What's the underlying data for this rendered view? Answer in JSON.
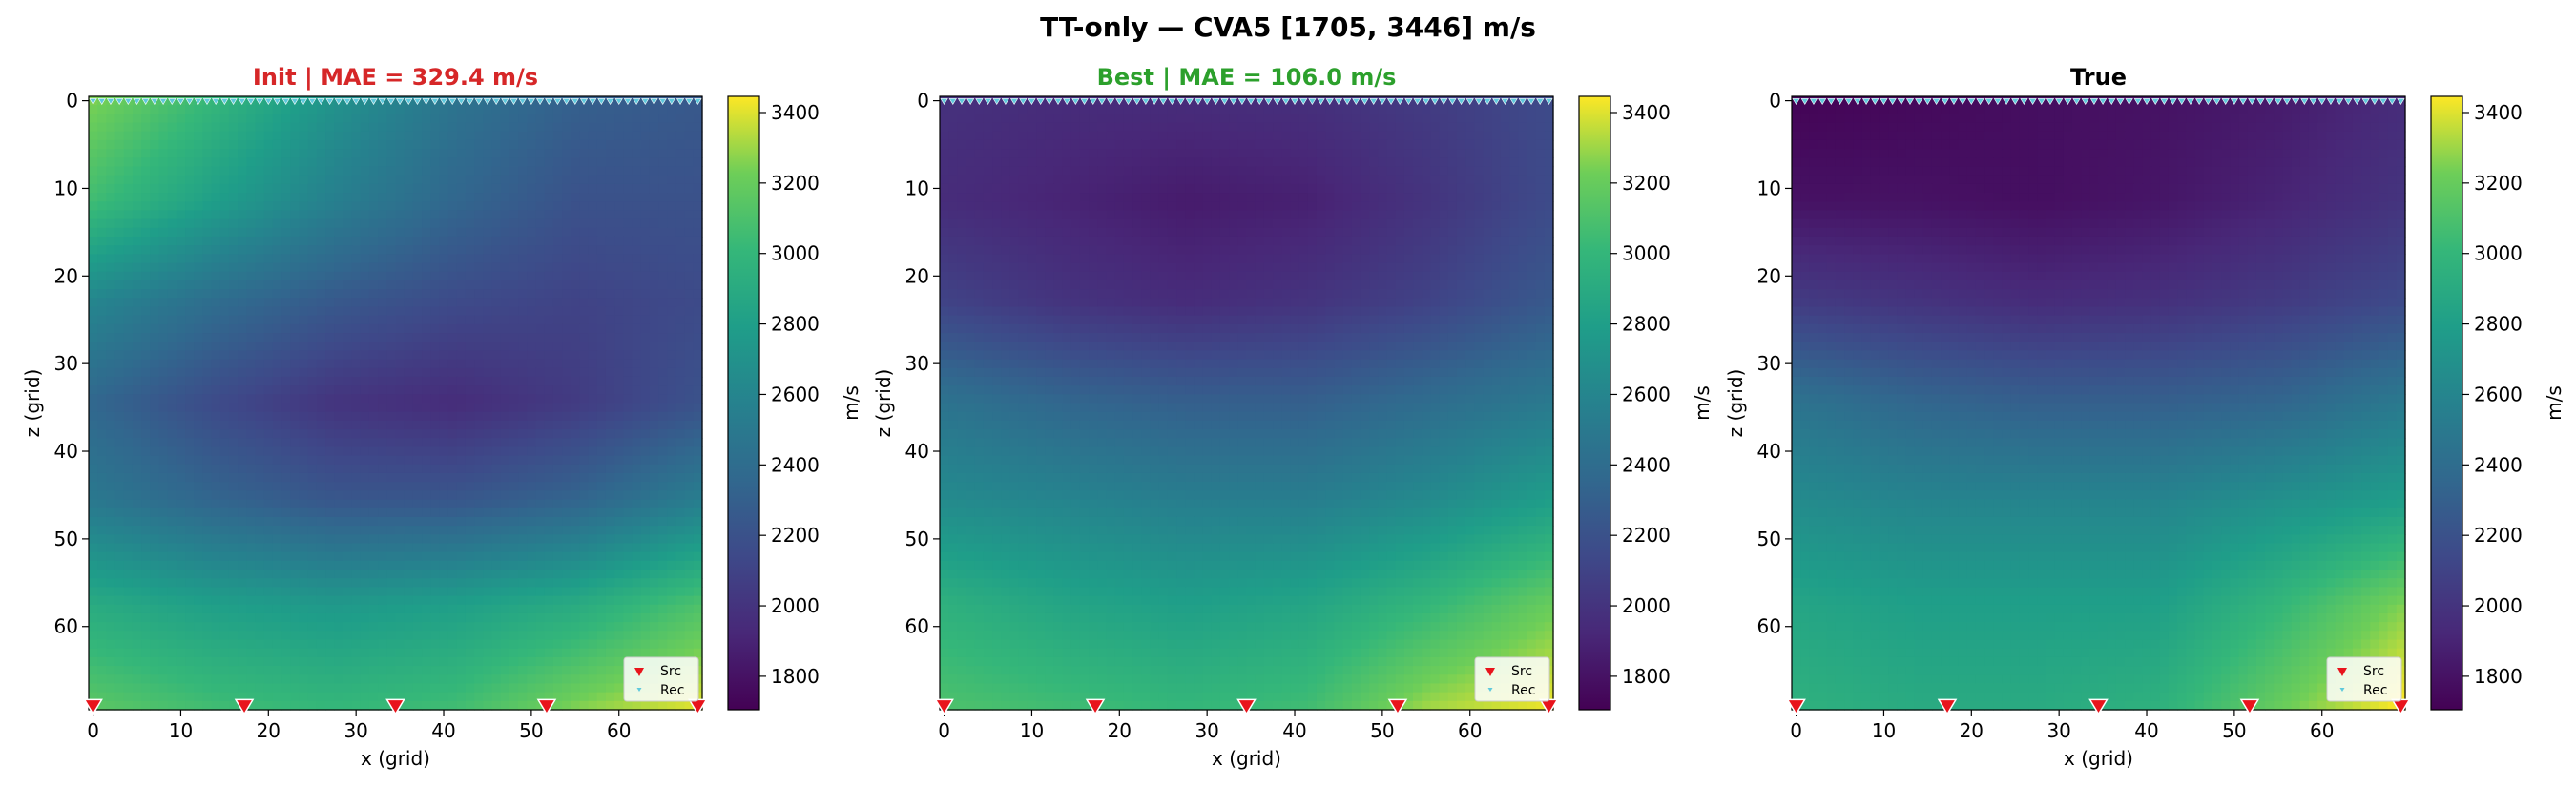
{
  "figure": {
    "suptitle": "TT-only — CVA5 [1705, 3446] m/s"
  },
  "chart_data": {
    "type": "heatmap",
    "value_range": [
      1705,
      3446
    ],
    "colormap": "viridis",
    "colorbar": {
      "label": "m/s",
      "ticks": [
        1800,
        2000,
        2200,
        2400,
        2600,
        2800,
        3000,
        3200,
        3400
      ]
    },
    "grid_size": {
      "nx": 70,
      "nz": 70
    },
    "x_ticks": [
      0,
      10,
      20,
      30,
      40,
      50,
      60
    ],
    "z_ticks": [
      0,
      10,
      20,
      30,
      40,
      50,
      60
    ],
    "xlabel": "x (grid)",
    "ylabel": "z (grid)",
    "legend": {
      "position": "lower-right",
      "entries": [
        "Src",
        "Rec"
      ]
    },
    "source_x": [
      0,
      17.25,
      34.5,
      51.75,
      69
    ],
    "source_z": 69,
    "receiver_count": 70,
    "receiver_z": 0,
    "panels": [
      {
        "title": "Init  |  MAE = 329.4 m/s",
        "title_color": "#d62728",
        "model": "init",
        "control_grid": [
          [
            3250,
            3000,
            2700,
            2450,
            2300,
            2250
          ],
          [
            3050,
            2800,
            2550,
            2350,
            2200,
            2200
          ],
          [
            2600,
            2400,
            2250,
            2150,
            2100,
            2150
          ],
          [
            2350,
            2150,
            2000,
            1950,
            2050,
            2200
          ],
          [
            2500,
            2350,
            2250,
            2250,
            2350,
            2550
          ],
          [
            2900,
            2800,
            2750,
            2800,
            2900,
            3100
          ],
          [
            3150,
            3050,
            3000,
            3050,
            3250,
            3400
          ]
        ]
      },
      {
        "title": "Best  |  MAE = 106.0 m/s",
        "title_color": "#2ca02c",
        "model": "best",
        "control_grid": [
          [
            1980,
            1950,
            1950,
            1970,
            2050,
            2150
          ],
          [
            1950,
            1900,
            1850,
            1880,
            2000,
            2150
          ],
          [
            2100,
            2000,
            1950,
            2000,
            2100,
            2250
          ],
          [
            2450,
            2350,
            2300,
            2300,
            2400,
            2500
          ],
          [
            2650,
            2600,
            2550,
            2550,
            2650,
            2800
          ],
          [
            2950,
            2850,
            2800,
            2850,
            3000,
            3200
          ],
          [
            3100,
            3050,
            3000,
            3050,
            3300,
            3420
          ]
        ]
      },
      {
        "title": "True",
        "title_color": "#000000",
        "model": "true",
        "control_grid": [
          [
            1720,
            1750,
            1780,
            1800,
            1850,
            1950
          ],
          [
            1800,
            1800,
            1780,
            1820,
            1900,
            2000
          ],
          [
            2050,
            2000,
            1950,
            1980,
            2050,
            2150
          ],
          [
            2450,
            2350,
            2300,
            2300,
            2350,
            2500
          ],
          [
            2650,
            2600,
            2600,
            2600,
            2700,
            2800
          ],
          [
            2850,
            2800,
            2800,
            2800,
            3000,
            3250
          ],
          [
            2950,
            2900,
            2900,
            2950,
            3200,
            3450
          ]
        ]
      }
    ]
  }
}
